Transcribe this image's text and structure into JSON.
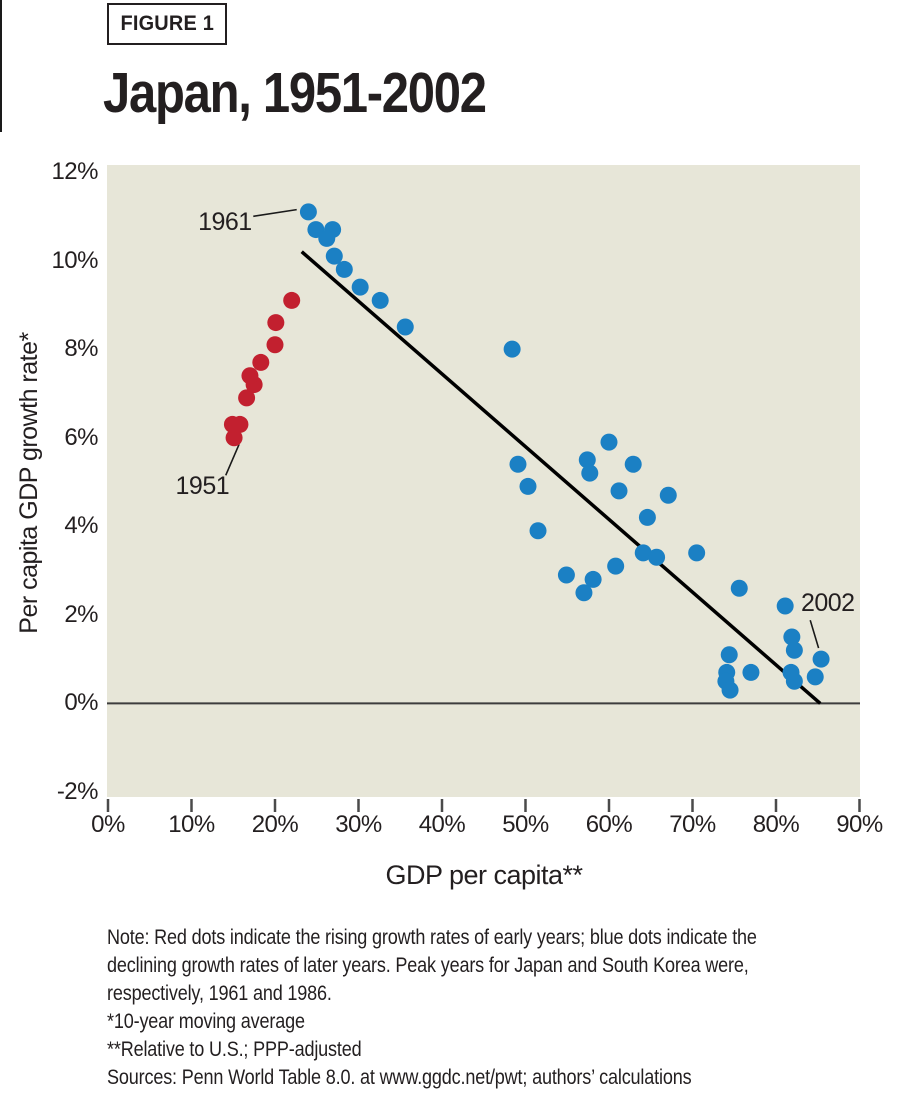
{
  "figure_label": "FIGURE 1",
  "chart_data": {
    "type": "scatter",
    "title": "Japan, 1951-2002",
    "xlabel": "GDP per capita**",
    "ylabel": "Per capita GDP growth rate*",
    "xlim": [
      0,
      90
    ],
    "ylim": [
      -2,
      12
    ],
    "grid": false,
    "legend": "none",
    "plot_bg_color": "#e7e6d8",
    "x_tick_values": [
      0,
      10,
      20,
      30,
      40,
      50,
      60,
      70,
      80,
      90
    ],
    "x_tick_labels": [
      "0%",
      "10%",
      "20%",
      "30%",
      "40%",
      "50%",
      "60%",
      "70%",
      "80%",
      "90%"
    ],
    "y_tick_values": [
      12,
      10,
      8,
      6,
      4,
      2,
      0,
      -2
    ],
    "y_tick_labels": [
      "12%",
      "10%",
      "8%",
      "6%",
      "4%",
      "2%",
      "0%",
      "-2%"
    ],
    "series": [
      {
        "name": "early years (rising growth rates)",
        "color": "#c2202f",
        "points": [
          [
            15.1,
            6.0
          ],
          [
            14.9,
            6.3
          ],
          [
            15.8,
            6.3
          ],
          [
            16.6,
            6.9
          ],
          [
            17.5,
            7.2
          ],
          [
            17.0,
            7.4
          ],
          [
            18.3,
            7.7
          ],
          [
            20.0,
            8.1
          ],
          [
            20.1,
            8.6
          ],
          [
            22.0,
            9.1
          ]
        ]
      },
      {
        "name": "later years (declining growth rates)",
        "color": "#1b80c4",
        "points": [
          [
            24.0,
            11.1
          ],
          [
            24.9,
            10.7
          ],
          [
            26.9,
            10.7
          ],
          [
            26.2,
            10.5
          ],
          [
            27.1,
            10.1
          ],
          [
            28.3,
            9.8
          ],
          [
            30.2,
            9.4
          ],
          [
            32.6,
            9.1
          ],
          [
            35.6,
            8.5
          ],
          [
            48.4,
            8.0
          ],
          [
            49.1,
            5.4
          ],
          [
            50.3,
            4.9
          ],
          [
            51.5,
            3.9
          ],
          [
            57.4,
            5.5
          ],
          [
            57.7,
            5.2
          ],
          [
            60.0,
            5.9
          ],
          [
            62.9,
            5.4
          ],
          [
            61.2,
            4.8
          ],
          [
            67.1,
            4.7
          ],
          [
            64.6,
            4.2
          ],
          [
            64.1,
            3.4
          ],
          [
            65.7,
            3.3
          ],
          [
            70.5,
            3.4
          ],
          [
            60.8,
            3.1
          ],
          [
            54.9,
            2.9
          ],
          [
            58.1,
            2.8
          ],
          [
            57.0,
            2.5
          ],
          [
            75.6,
            2.6
          ],
          [
            81.1,
            2.2
          ],
          [
            81.9,
            1.5
          ],
          [
            82.2,
            1.2
          ],
          [
            74.4,
            1.1
          ],
          [
            74.1,
            0.7
          ],
          [
            74.0,
            0.5
          ],
          [
            74.5,
            0.3
          ],
          [
            77.0,
            0.7
          ],
          [
            81.8,
            0.7
          ],
          [
            82.2,
            0.5
          ],
          [
            84.7,
            0.6
          ],
          [
            85.4,
            1.0
          ]
        ]
      }
    ],
    "trend_line": {
      "from": [
        23.2,
        10.2
      ],
      "to": [
        85.3,
        0.0
      ],
      "color": "#000000"
    },
    "zero_line_y": 0,
    "annotations": [
      {
        "text": "1961",
        "label_pos": [
          14.0,
          10.87
        ],
        "line_from": [
          17.4,
          11.0
        ],
        "line_to": [
          22.6,
          11.15
        ]
      },
      {
        "text": "1951",
        "label_pos": [
          11.3,
          4.91
        ],
        "line_from": [
          15.7,
          5.85
        ],
        "line_to": [
          14.1,
          5.15
        ]
      },
      {
        "text": "2002",
        "label_pos": [
          86.2,
          2.27
        ],
        "line_from": [
          84.1,
          1.88
        ],
        "line_to": [
          85.1,
          1.25
        ]
      }
    ]
  },
  "notes": {
    "lines": [
      "Note: Red dots indicate the rising growth rates of early years; blue dots indicate the",
      "declining growth rates of later years. Peak years for Japan and South Korea were,",
      "respectively, 1961 and 1986.",
      "*10-year moving average",
      "**Relative to U.S.; PPP-adjusted",
      "Sources: Penn World Table 8.0. at www.ggdc.net/pwt; authors’ calculations"
    ]
  },
  "colors": {
    "text": "#231f20",
    "zero_line": "#3d3d3d",
    "tick": "#4a4a4a",
    "early_series_red": "#c2202f",
    "later_series_blue": "#1b80c4",
    "plot_background": "#e7e6d8"
  }
}
